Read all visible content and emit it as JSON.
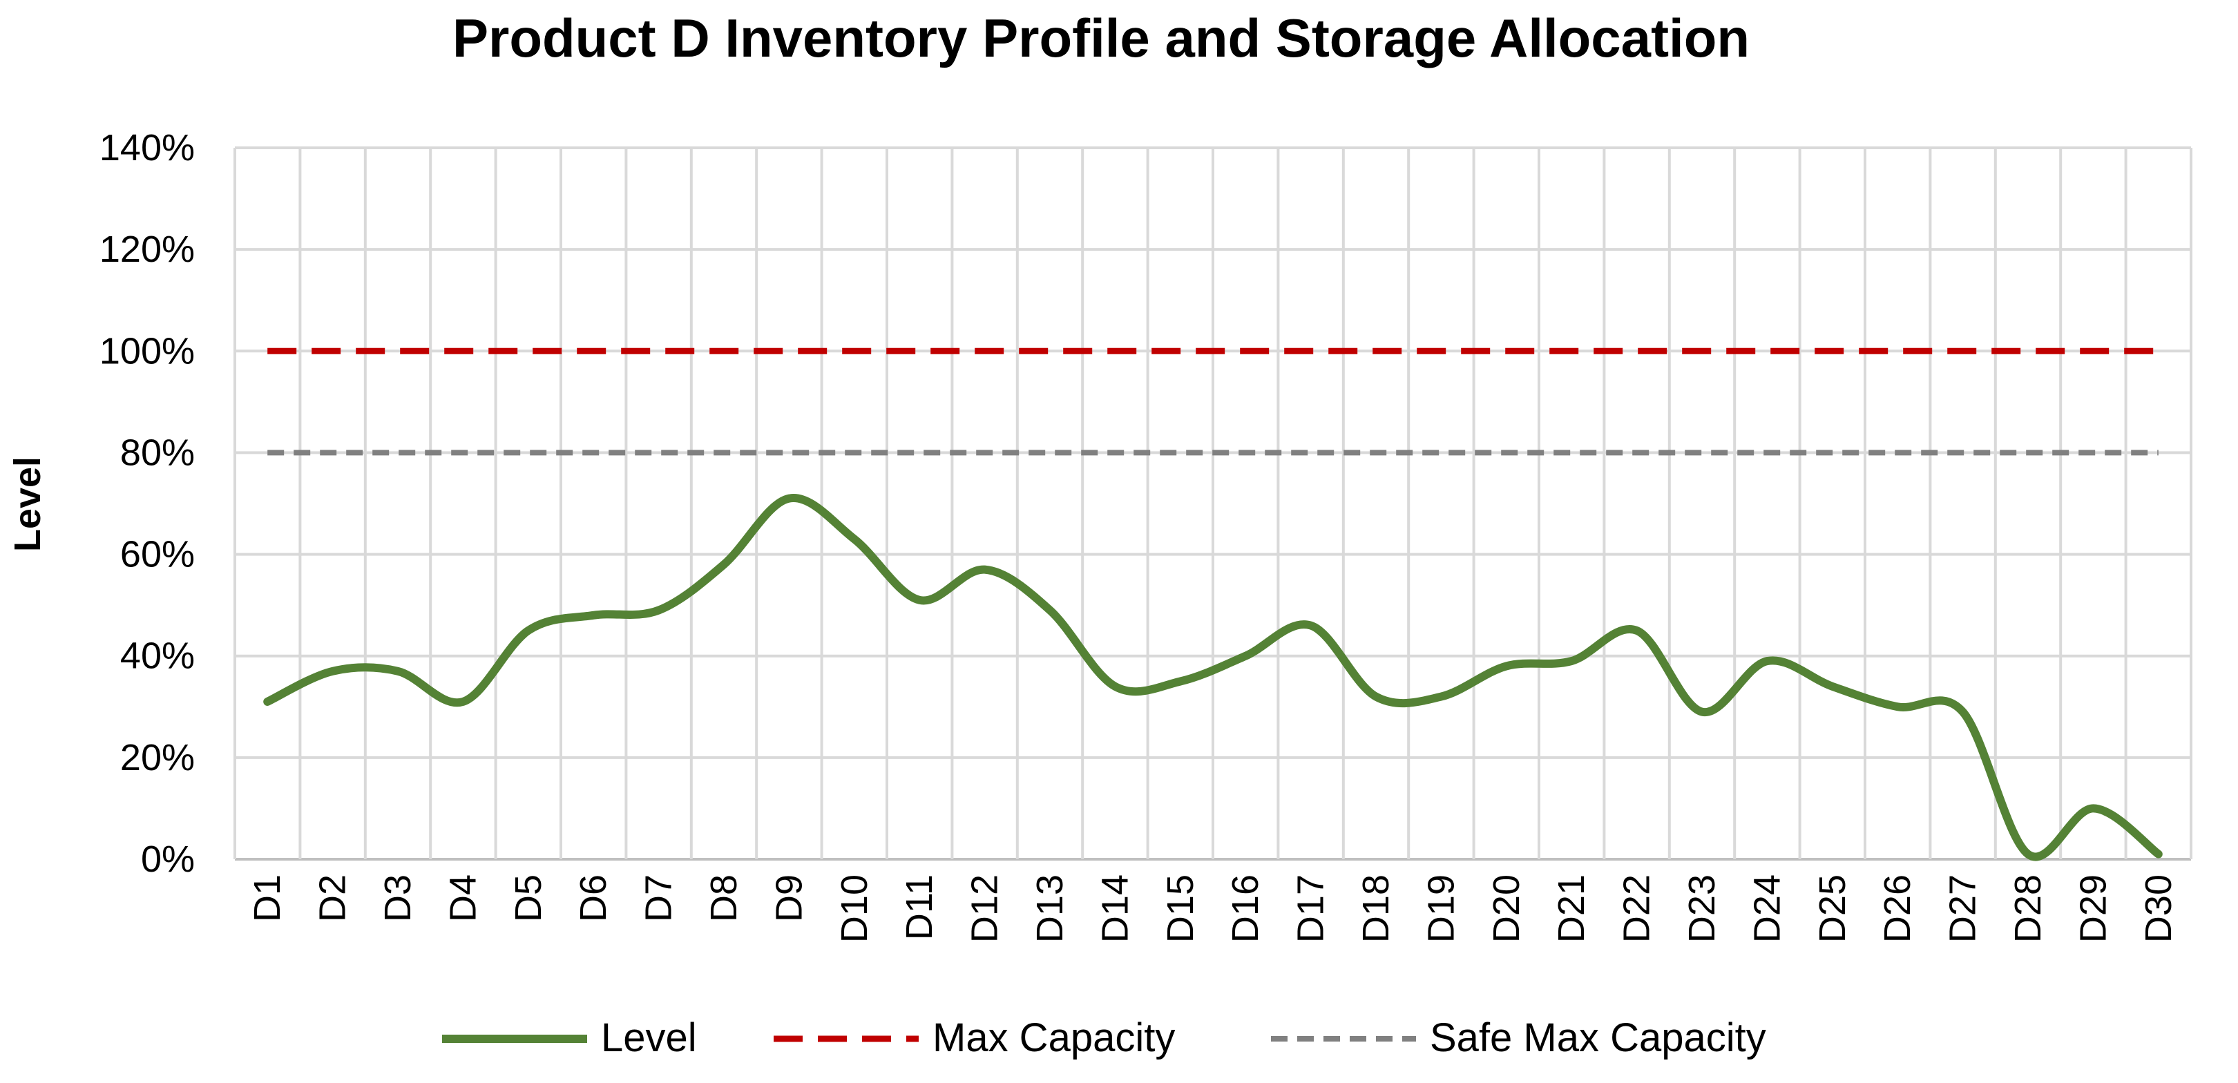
{
  "chart_data": {
    "type": "line",
    "title": "Product D Inventory Profile and Storage Allocation",
    "xlabel": "",
    "ylabel": "Level",
    "ylim": [
      0,
      140
    ],
    "yticks": [
      "0%",
      "20%",
      "40%",
      "60%",
      "80%",
      "100%",
      "120%",
      "140%"
    ],
    "categories": [
      "D1",
      "D2",
      "D3",
      "D4",
      "D5",
      "D6",
      "D7",
      "D8",
      "D9",
      "D10",
      "D11",
      "D12",
      "D13",
      "D14",
      "D15",
      "D16",
      "D17",
      "D18",
      "D19",
      "D20",
      "D21",
      "D22",
      "D23",
      "D24",
      "D25",
      "D26",
      "D27",
      "D28",
      "D29",
      "D30"
    ],
    "series": [
      {
        "name": "Level",
        "color": "#548235",
        "style": "solid",
        "values": [
          31,
          37,
          37,
          31,
          45,
          48,
          49,
          58,
          71,
          63,
          51,
          57,
          49,
          34,
          35,
          40,
          46,
          32,
          32,
          38,
          39,
          45,
          29,
          39,
          34,
          30,
          29,
          1,
          10,
          1
        ]
      },
      {
        "name": "Max Capacity",
        "color": "#C00000",
        "style": "dashed",
        "values": [
          100,
          100,
          100,
          100,
          100,
          100,
          100,
          100,
          100,
          100,
          100,
          100,
          100,
          100,
          100,
          100,
          100,
          100,
          100,
          100,
          100,
          100,
          100,
          100,
          100,
          100,
          100,
          100,
          100,
          100
        ]
      },
      {
        "name": "Safe Max Capacity",
        "color": "#808080",
        "style": "dashed",
        "values": [
          80,
          80,
          80,
          80,
          80,
          80,
          80,
          80,
          80,
          80,
          80,
          80,
          80,
          80,
          80,
          80,
          80,
          80,
          80,
          80,
          80,
          80,
          80,
          80,
          80,
          80,
          80,
          80,
          80,
          80
        ]
      }
    ],
    "grid": true,
    "legend_position": "bottom"
  }
}
